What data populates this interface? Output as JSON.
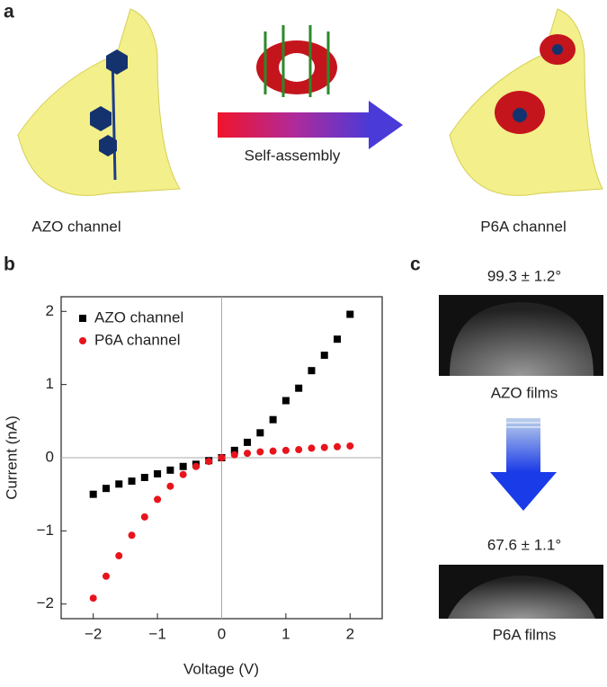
{
  "panel_a": {
    "label": "a",
    "left_caption": "AZO channel",
    "arrow_label": "Self-assembly",
    "right_caption": "P6A channel"
  },
  "chart_data": {
    "type": "scatter",
    "panel_label": "b",
    "xlabel": "Voltage (V)",
    "ylabel": "Current (nA)",
    "xlim": [
      -2.5,
      2.5
    ],
    "ylim": [
      -2.2,
      2.2
    ],
    "xticks": [
      {
        "value": -2,
        "label": "−2"
      },
      {
        "value": -1,
        "label": "−1"
      },
      0,
      1,
      2
    ],
    "yticks": [
      {
        "value": -2,
        "label": "−2"
      },
      {
        "value": -1,
        "label": "−1"
      },
      0,
      1,
      2
    ],
    "zero_lines": true,
    "legend": "upper left",
    "x": [
      -2,
      -1.8,
      -1.6,
      -1.4,
      -1.2,
      -1,
      -0.8,
      -0.6,
      -0.4,
      -0.2,
      0,
      0.2,
      0.4,
      0.6,
      0.8,
      1,
      1.2,
      1.4,
      1.6,
      1.8,
      2
    ],
    "series": [
      {
        "name": "AZO channel",
        "color": "#000000",
        "marker": "square",
        "values": [
          -0.5,
          -0.42,
          -0.36,
          -0.32,
          -0.27,
          -0.22,
          -0.17,
          -0.12,
          -0.09,
          -0.04,
          0,
          0.1,
          0.21,
          0.34,
          0.52,
          0.78,
          0.95,
          1.19,
          1.4,
          1.62,
          1.96
        ]
      },
      {
        "name": "P6A channel",
        "color": "#e8141c",
        "marker": "circle",
        "values": [
          -1.92,
          -1.62,
          -1.34,
          -1.06,
          -0.81,
          -0.57,
          -0.39,
          -0.23,
          -0.12,
          -0.05,
          0,
          0.04,
          0.06,
          0.08,
          0.09,
          0.1,
          0.11,
          0.13,
          0.14,
          0.15,
          0.16
        ]
      }
    ]
  },
  "panel_c": {
    "label": "c",
    "top_angle": "99.3 ± 1.2°",
    "top_caption": "AZO films",
    "bottom_angle": "67.6 ± 1.1°",
    "bottom_caption": "P6A films"
  }
}
